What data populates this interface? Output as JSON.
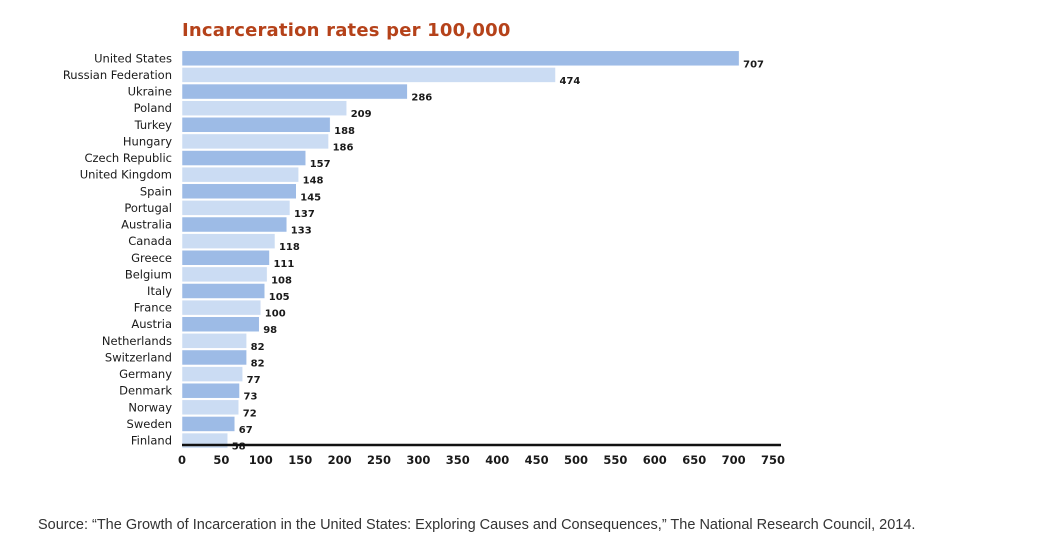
{
  "chart_data": {
    "type": "bar",
    "orientation": "horizontal",
    "title": "Incarceration rates per 100,000",
    "categories": [
      "United States",
      "Russian Federation",
      "Ukraine",
      "Poland",
      "Turkey",
      "Hungary",
      "Czech Republic",
      "United Kingdom",
      "Spain",
      "Portugal",
      "Australia",
      "Canada",
      "Greece",
      "Belgium",
      "Italy",
      "France",
      "Austria",
      "Netherlands",
      "Switzerland",
      "Germany",
      "Denmark",
      "Norway",
      "Sweden",
      "Finland"
    ],
    "values": [
      707,
      474,
      286,
      209,
      188,
      186,
      157,
      148,
      145,
      137,
      133,
      118,
      111,
      108,
      105,
      100,
      98,
      82,
      82,
      77,
      73,
      72,
      67,
      58
    ],
    "xlim": [
      0,
      750
    ],
    "xticks": [
      0,
      50,
      100,
      150,
      200,
      250,
      300,
      350,
      400,
      450,
      500,
      550,
      600,
      650,
      700,
      750
    ],
    "xlabel": "",
    "ylabel": "",
    "grid": false,
    "legend": "none",
    "colors": {
      "title": "#b5421a",
      "bar_dark": "#9dbbe6",
      "bar_light": "#cbdcf3",
      "bar_edge": "#ffffff",
      "axis": "#111111"
    }
  },
  "source": "Source: “The Growth of Incarceration in the United States: Exploring Causes and Consequences,” The National Research Council, 2014."
}
